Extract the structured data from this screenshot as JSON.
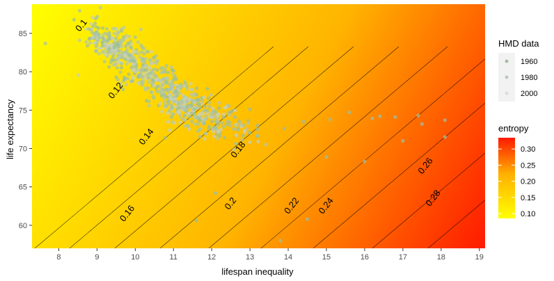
{
  "chart_data": {
    "type": "scatter",
    "xlabel": "lifespan inequality",
    "ylabel": "life expectancy",
    "xlim": [
      7.3,
      19.15
    ],
    "ylim": [
      57.0,
      88.8
    ],
    "x_ticks": [
      8,
      9,
      10,
      11,
      12,
      13,
      14,
      15,
      16,
      17,
      18,
      19
    ],
    "y_ticks": [
      60,
      65,
      70,
      75,
      80,
      85
    ],
    "grid": false,
    "background": {
      "type": "heatmap",
      "variable": "entropy",
      "colors": {
        "low": "#ffff00",
        "high": "#ff0000"
      }
    },
    "contours": [
      {
        "level": 0.1,
        "label": "0.1",
        "label_at": [
          8.6,
          86.0
        ]
      },
      {
        "level": 0.12,
        "label": "0.12",
        "label_at": [
          9.5,
          77.5
        ]
      },
      {
        "level": 0.14,
        "label": "0.14",
        "label_at": [
          10.3,
          71.5
        ]
      },
      {
        "level": 0.16,
        "label": "0.16",
        "label_at": [
          9.8,
          61.5
        ]
      },
      {
        "level": 0.18,
        "label": "0.18",
        "label_at": [
          12.7,
          69.8
        ]
      },
      {
        "level": 0.2,
        "label": "0.2",
        "label_at": [
          12.5,
          62.8
        ]
      },
      {
        "level": 0.22,
        "label": "0.22",
        "label_at": [
          14.1,
          62.5
        ]
      },
      {
        "level": 0.24,
        "label": "0.24",
        "label_at": [
          15.0,
          62.5
        ]
      },
      {
        "level": 0.26,
        "label": "0.26",
        "label_at": [
          17.6,
          67.7
        ]
      },
      {
        "level": 0.28,
        "label": "0.28",
        "label_at": [
          17.8,
          63.5
        ]
      }
    ],
    "scatter_clusters": [
      {
        "cx": 9.3,
        "cy": 83.8,
        "sx": 0.4,
        "sy": 1.2,
        "n": 150
      },
      {
        "cx": 10.0,
        "cy": 81.0,
        "sx": 0.55,
        "sy": 1.6,
        "n": 190
      },
      {
        "cx": 10.9,
        "cy": 77.5,
        "sx": 0.55,
        "sy": 1.6,
        "n": 180
      },
      {
        "cx": 11.5,
        "cy": 74.8,
        "sx": 0.5,
        "sy": 1.2,
        "n": 150
      },
      {
        "cx": 12.3,
        "cy": 74.2,
        "sx": 0.45,
        "sy": 1.1,
        "n": 70
      }
    ],
    "scatter_outliers": [
      [
        15.1,
        73.8
      ],
      [
        15.6,
        74.7
      ],
      [
        16.2,
        73.9
      ],
      [
        16.8,
        74.1
      ],
      [
        17.4,
        74.3
      ],
      [
        17.5,
        73.2
      ],
      [
        18.1,
        73.7
      ],
      [
        18.1,
        71.5
      ],
      [
        17.0,
        71.0
      ],
      [
        16.4,
        74.2
      ],
      [
        15.0,
        68.9
      ],
      [
        16.0,
        68.3
      ],
      [
        14.5,
        60.8
      ],
      [
        13.8,
        58.0
      ],
      [
        11.6,
        60.6
      ],
      [
        12.1,
        64.2
      ],
      [
        13.2,
        73.0
      ],
      [
        13.9,
        72.6
      ],
      [
        14.4,
        73.5
      ],
      [
        13.0,
        75.1
      ]
    ],
    "point_color": "#9dbf9b",
    "legends": [
      {
        "title": "HMD data",
        "entries": [
          "1960",
          "1980",
          "2000"
        ]
      },
      {
        "title": "entropy",
        "ticks": [
          "0.10",
          "0.15",
          "0.20",
          "0.25",
          "0.30"
        ],
        "tick_values": [
          0.1,
          0.15,
          0.2,
          0.25,
          0.3
        ],
        "range": [
          0.085,
          0.335
        ]
      }
    ]
  }
}
